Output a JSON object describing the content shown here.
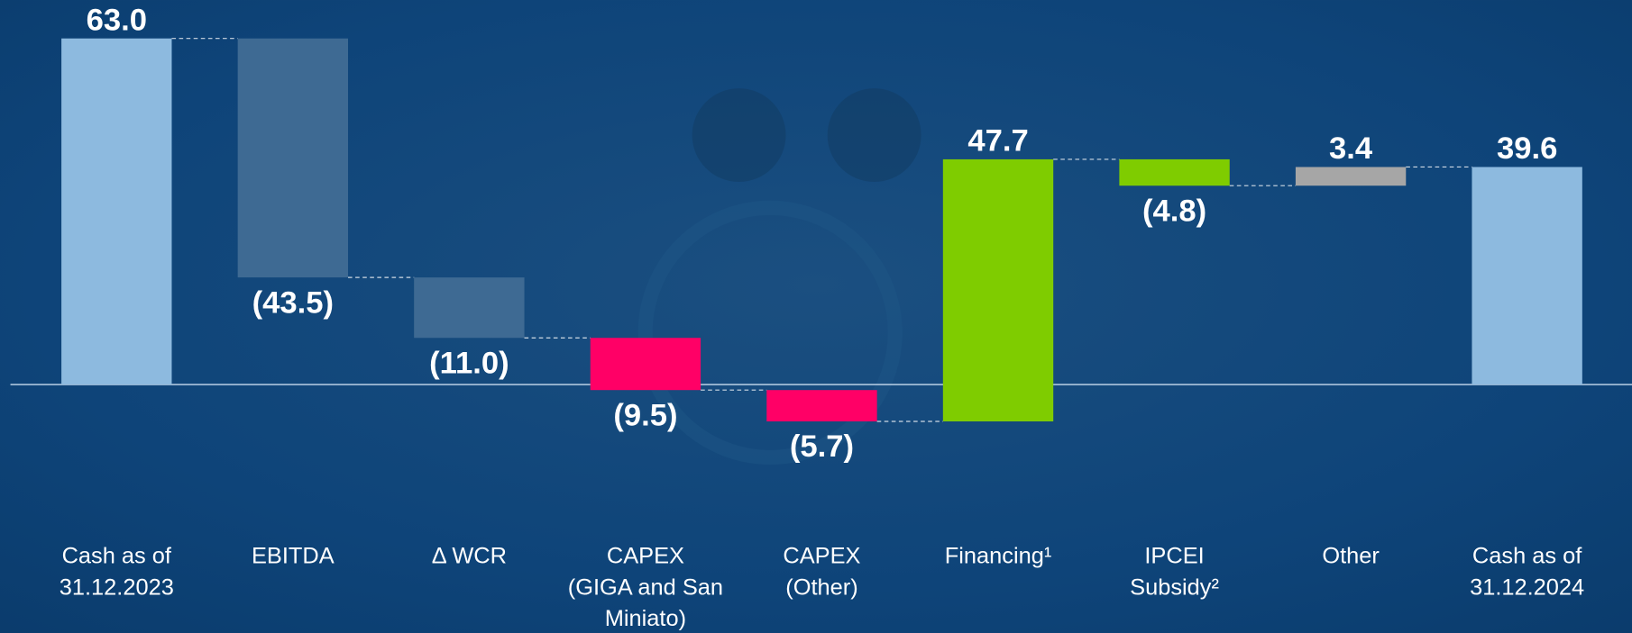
{
  "chart_data": {
    "type": "waterfall",
    "categories": [
      "Cash as of\n31.12.2023",
      "EBITDA",
      "Δ WCR",
      "CAPEX\n(GIGA and San\nMiniato)",
      "CAPEX\n(Other)",
      "Financing¹",
      "IPCEI\nSubsidy²",
      "Other",
      "Cash as of\n31.12.2024"
    ],
    "values": [
      63.0,
      -43.5,
      -11.0,
      -9.5,
      -5.7,
      47.7,
      -4.8,
      3.4,
      39.6
    ],
    "value_labels": [
      "63.0",
      "(43.5)",
      "(11.0)",
      "(9.5)",
      "(5.7)",
      "47.7",
      "(4.8)",
      "3.4",
      "39.6"
    ],
    "colors": [
      "#8dbadf",
      "#3e6a93",
      "#3e6a93",
      "#ff0066",
      "#ff0066",
      "#7fcc00",
      "#7fcc00",
      "#a6a6a6",
      "#8dbadf"
    ]
  }
}
